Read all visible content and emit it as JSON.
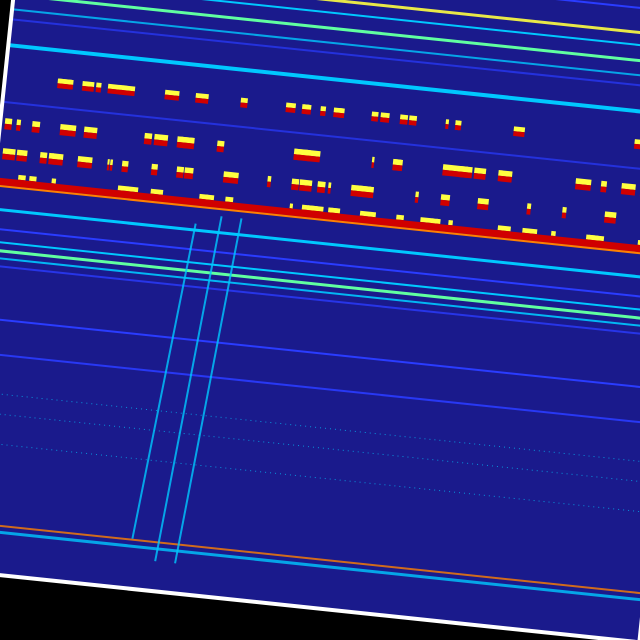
{
  "chart_data": {
    "type": "heatmap",
    "title": "",
    "xlabel": "",
    "ylabel": "",
    "colormap": [
      "#1a1a8c",
      "#2a3cff",
      "#00c8ff",
      "#60ffa0",
      "#ffff40",
      "#ff8000",
      "#d00000"
    ],
    "background": "#1a1a8c",
    "frame_color": "#ffffff",
    "grid": false
  }
}
